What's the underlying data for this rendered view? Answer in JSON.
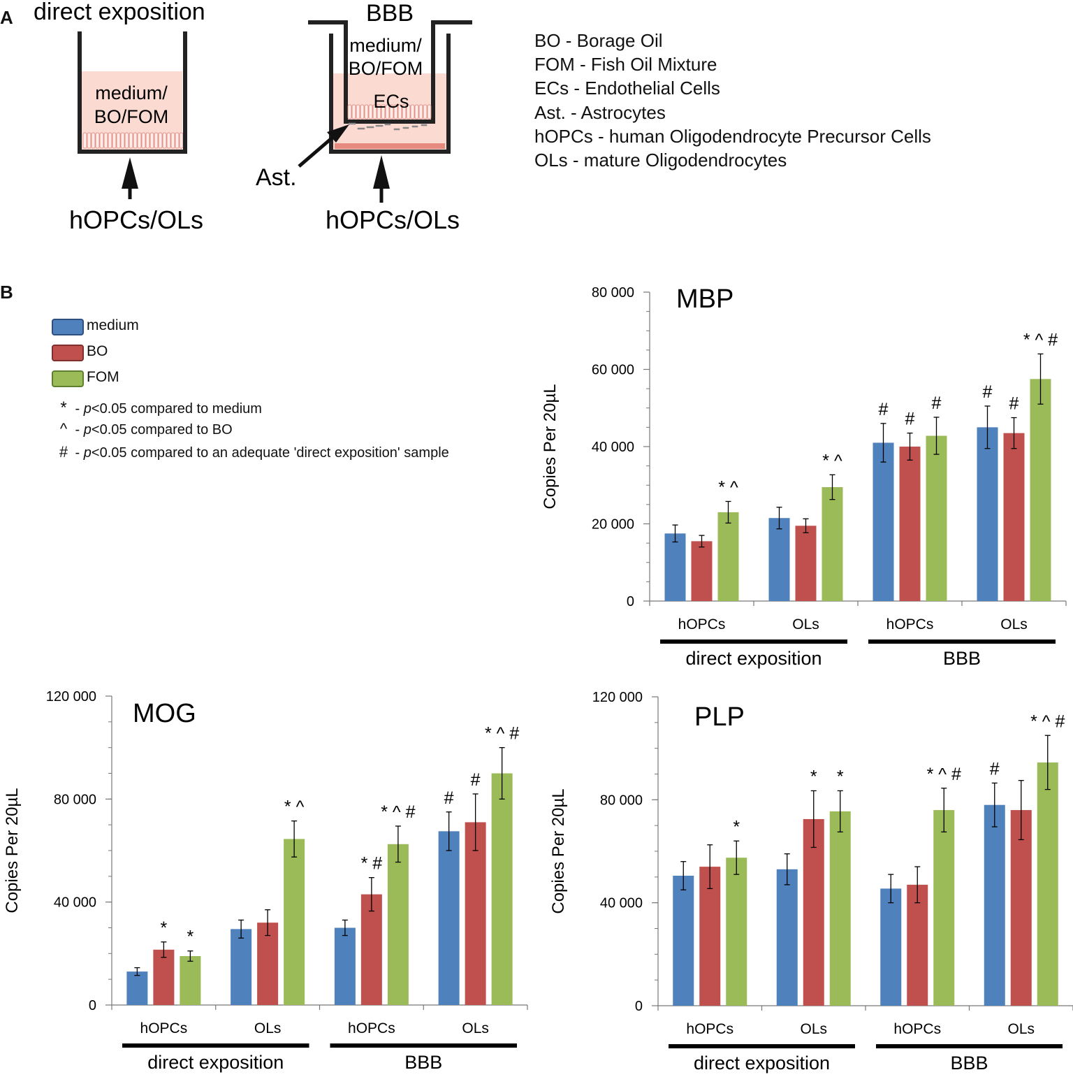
{
  "panel_a": {
    "label": "A",
    "left_title": "direct exposition",
    "left_medium": [
      "medium/",
      "BO/FOM"
    ],
    "left_bottom": "hOPCs/OLs",
    "right_title": "BBB",
    "right_medium": [
      "medium/",
      "BO/FOM"
    ],
    "ecs_label": "ECs",
    "ast_label": "Ast.",
    "right_bottom": "hOPCs/OLs",
    "definitions": [
      "BO - Borage Oil",
      "FOM - Fish Oil Mixture",
      "ECs - Endothelial Cells",
      "Ast. - Astrocytes",
      "hOPCs - human Oligodendrocyte Precursor Cells",
      "OLs - mature Oligodendrocytes"
    ]
  },
  "panel_b": {
    "label": "B",
    "legend": [
      {
        "name": "medium",
        "color": "#4F81BD"
      },
      {
        "name": "BO",
        "color": "#C0504D"
      },
      {
        "name": "FOM",
        "color": "#9BBB59"
      }
    ],
    "significance": [
      {
        "symbol": "*",
        "prefix": " - ",
        "p": "p",
        "text": "<0.05 compared to medium"
      },
      {
        "symbol": "^",
        "prefix": " - ",
        "p": "p",
        "text": "<0.05 compared to BO"
      },
      {
        "symbol": "#",
        "prefix": " - ",
        "p": "p",
        "text": "<0.05 compared to an adequate 'direct exposition' sample"
      }
    ]
  },
  "chart_data": [
    {
      "type": "bar",
      "title": "MBP",
      "ylabel": "Copies Per 20µL",
      "ylim": [
        0,
        80000
      ],
      "yticks": [
        "0",
        "20 000",
        "40 000",
        "60 000",
        "80 000"
      ],
      "ytick_values": [
        0,
        20000,
        40000,
        60000,
        80000
      ],
      "categories": [
        "hOPCs",
        "OLs",
        "hOPCs",
        "OLs"
      ],
      "groups": [
        "direct exposition",
        "BBB"
      ],
      "series": [
        {
          "name": "medium",
          "values": [
            17500,
            21500,
            41000,
            45000
          ],
          "errors": [
            2200,
            2800,
            5000,
            5500
          ],
          "annotations": [
            "",
            "",
            "#",
            "#"
          ]
        },
        {
          "name": "BO",
          "values": [
            15500,
            19500,
            40000,
            43500
          ],
          "errors": [
            1500,
            1800,
            3500,
            4000
          ],
          "annotations": [
            "",
            "",
            "#",
            "#"
          ]
        },
        {
          "name": "FOM",
          "values": [
            23000,
            29500,
            42800,
            57500
          ],
          "errors": [
            2800,
            3200,
            4800,
            6500
          ],
          "annotations": [
            "* ^",
            "* ^",
            "#",
            "* ^ #"
          ]
        }
      ]
    },
    {
      "type": "bar",
      "title": "MOG",
      "ylabel": "Copies Per 20µL",
      "ylim": [
        0,
        120000
      ],
      "yticks": [
        "0",
        "40 000",
        "80 000",
        "120 000"
      ],
      "ytick_values": [
        0,
        40000,
        80000,
        120000
      ],
      "categories": [
        "hOPCs",
        "OLs",
        "hOPCs",
        "OLs"
      ],
      "groups": [
        "direct exposition",
        "BBB"
      ],
      "series": [
        {
          "name": "medium",
          "values": [
            13000,
            29500,
            30000,
            67500
          ],
          "errors": [
            1500,
            3500,
            3000,
            7500
          ],
          "annotations": [
            "",
            "",
            "",
            "#"
          ]
        },
        {
          "name": "BO",
          "values": [
            21500,
            32000,
            43000,
            71000
          ],
          "errors": [
            3000,
            5000,
            6500,
            11000
          ],
          "annotations": [
            "*",
            "",
            "* #",
            "#"
          ]
        },
        {
          "name": "FOM",
          "values": [
            19000,
            64500,
            62500,
            90000
          ],
          "errors": [
            2000,
            7000,
            7000,
            10000
          ],
          "annotations": [
            "*",
            "* ^",
            "* ^ #",
            "* ^ #"
          ]
        }
      ]
    },
    {
      "type": "bar",
      "title": "PLP",
      "ylabel": "Copies Per 20µL",
      "ylim": [
        0,
        120000
      ],
      "yticks": [
        "0",
        "40 000",
        "80 000",
        "120 000"
      ],
      "ytick_values": [
        0,
        40000,
        80000,
        120000
      ],
      "categories": [
        "hOPCs",
        "OLs",
        "hOPCs",
        "OLs"
      ],
      "groups": [
        "direct exposition",
        "BBB"
      ],
      "series": [
        {
          "name": "medium",
          "values": [
            50500,
            53000,
            45500,
            78000
          ],
          "errors": [
            5500,
            6000,
            5500,
            8500
          ],
          "annotations": [
            "",
            "",
            "",
            "#"
          ]
        },
        {
          "name": "BO",
          "values": [
            54000,
            72500,
            47000,
            76000
          ],
          "errors": [
            8500,
            11000,
            7000,
            11500
          ],
          "annotations": [
            "",
            "*",
            "",
            ""
          ]
        },
        {
          "name": "FOM",
          "values": [
            57500,
            75500,
            76000,
            94500
          ],
          "errors": [
            6500,
            8000,
            8500,
            10500
          ],
          "annotations": [
            "*",
            "*",
            "* ^ #",
            "* ^ #"
          ]
        }
      ]
    }
  ]
}
